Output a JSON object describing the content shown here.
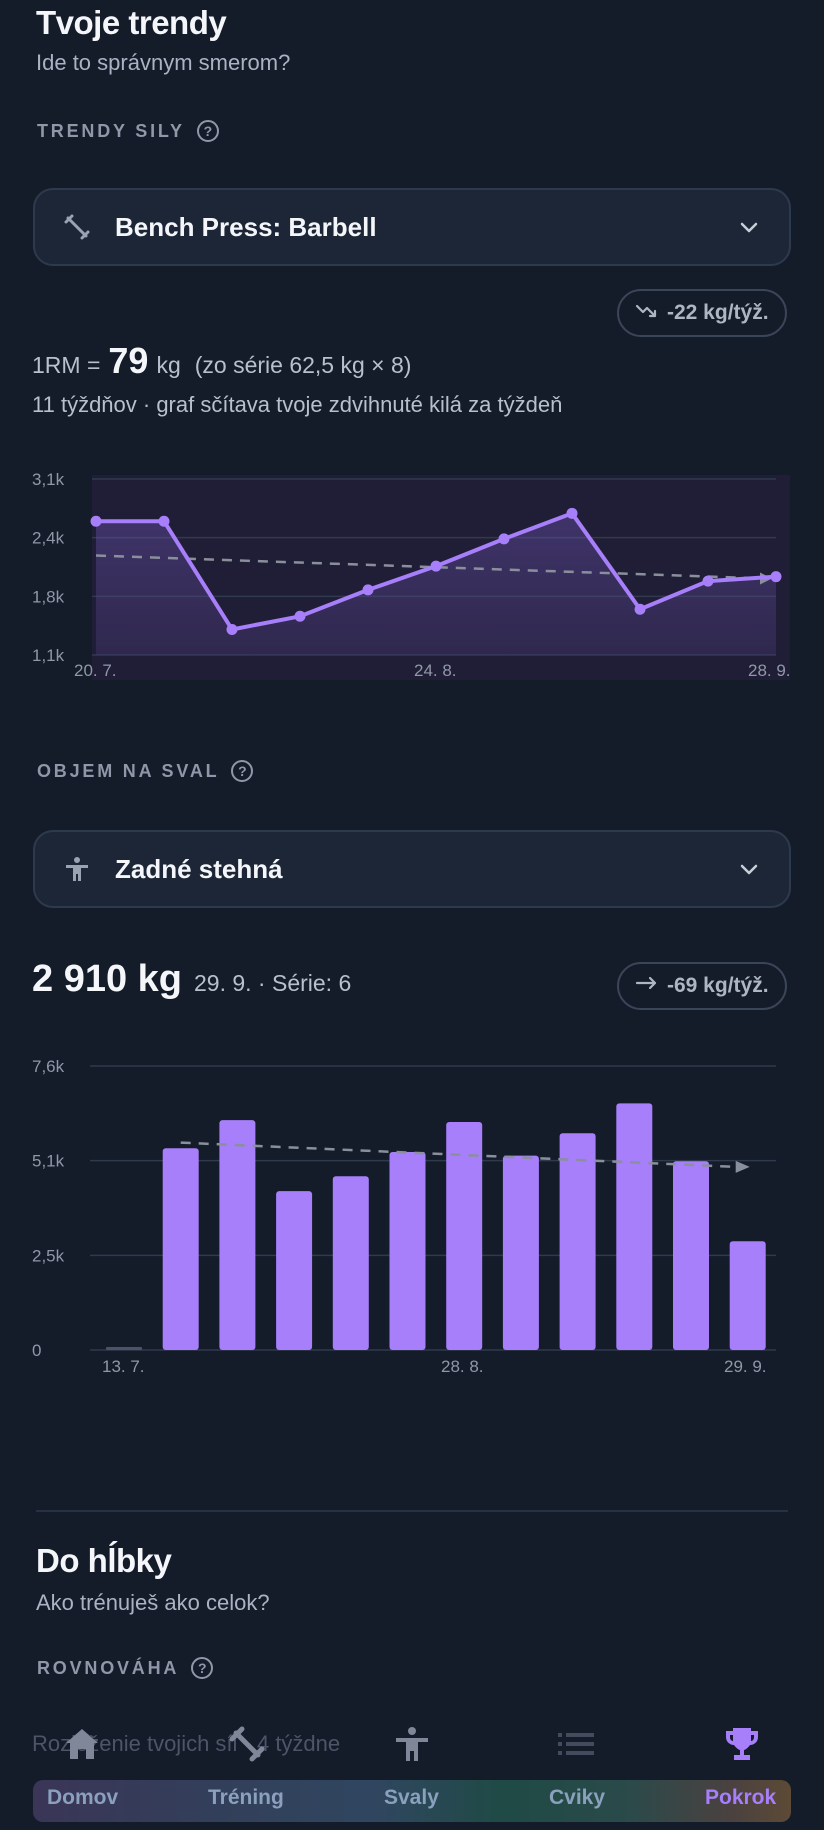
{
  "header": {
    "title": "Tvoje trendy",
    "subtitle": "Ide to správnym smerom?"
  },
  "strength": {
    "section_label": "TRENDY SILY",
    "help_icon": "?",
    "exercise": "Bench Press: Barbell",
    "trend_badge": "-22 kg/týž.",
    "one_rm_prefix": "1RM =",
    "one_rm_value": "79",
    "one_rm_unit": "kg",
    "one_rm_source": "(zo série 62,5 kg × 8)",
    "weeks_note": "11 týždňov · graf sčítava tvoje zdvihnuté kilá za týždeň"
  },
  "volume": {
    "section_label": "OBJEM NA SVAL",
    "help_icon": "?",
    "muscle": "Zadné stehná",
    "total": "2 910 kg",
    "meta": "29. 9. · Série: 6",
    "trend_badge": "-69 kg/týž."
  },
  "depth": {
    "title": "Do hĺbky",
    "subtitle": "Ako trénuješ ako celok?",
    "section_label": "ROVNOVÁHA",
    "help_icon": "?",
    "note": "Rozloženie tvojich síl · 4 týždne"
  },
  "nav": {
    "items": [
      {
        "label": "Domov",
        "icon": "home-icon"
      },
      {
        "label": "Tréning",
        "icon": "dumbbell-icon"
      },
      {
        "label": "Svaly",
        "icon": "body-icon"
      },
      {
        "label": "Cviky",
        "icon": "list-icon"
      },
      {
        "label": "Pokrok",
        "icon": "trophy-icon"
      }
    ],
    "active": "Pokrok"
  },
  "colors": {
    "accent": "#a77ffa",
    "background": "#141b29",
    "card": "#1c2636"
  },
  "chart_data": [
    {
      "type": "line",
      "x": [
        "20. 7.",
        "27. 7.",
        "3. 8.",
        "10. 8.",
        "17. 8.",
        "24. 8.",
        "31. 8.",
        "7. 9.",
        "14. 9.",
        "21. 9.",
        "28. 9."
      ],
      "x_tick_labels": [
        "20. 7.",
        "24. 8.",
        "28. 9."
      ],
      "series": [
        {
          "values": [
            2620,
            2620,
            1390,
            1540,
            1840,
            2110,
            2420,
            2710,
            1620,
            1940,
            1990
          ]
        }
      ],
      "trend": {
        "start": 2230,
        "end": 1970
      },
      "y_tick_labels": [
        "1,1k",
        "1,8k",
        "2,4k",
        "3,1k"
      ],
      "ylim": [
        1100,
        3100
      ],
      "grid": true
    },
    {
      "type": "bar",
      "categories": [
        "13. 7.",
        "20. 7.",
        "27. 7.",
        "3. 8.",
        "10. 8.",
        "17. 8.",
        "24. 8.",
        "28. 8.",
        "7. 9.",
        "14. 9.",
        "21. 9.",
        "29. 9."
      ],
      "x_tick_labels": [
        "13. 7.",
        "28. 8.",
        "29. 9."
      ],
      "values": [
        0,
        5400,
        6150,
        4250,
        4650,
        5300,
        6100,
        5200,
        5800,
        6600,
        5050,
        2910
      ],
      "trend": {
        "start": 5550,
        "end": 4900
      },
      "y_tick_labels": [
        "0",
        "2,5k",
        "5,1k",
        "7,6k"
      ],
      "ylim": [
        0,
        7600
      ],
      "grid": true
    }
  ]
}
